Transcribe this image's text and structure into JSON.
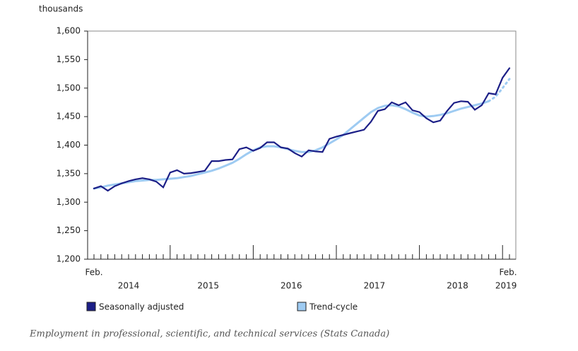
{
  "chart_data": {
    "type": "line",
    "y_axis_label": "thousands",
    "caption": "Employment in professional, scientific, and technical services (Stats Canada)",
    "categories": [
      null,
      null,
      null,
      null,
      null,
      null,
      null,
      null,
      null,
      null,
      null,
      null,
      null,
      null,
      null,
      null,
      null,
      null,
      null,
      null,
      null,
      null,
      null,
      null,
      null,
      null,
      null,
      null,
      null,
      null,
      null,
      null,
      null,
      null,
      null,
      null,
      null,
      null,
      null,
      null,
      null,
      null,
      null,
      null,
      null,
      null,
      null,
      null,
      null,
      null,
      null,
      null,
      null,
      null,
      null,
      null,
      null,
      null,
      null,
      null,
      null
    ],
    "first_month_label": "Feb.",
    "last_month_label": "Feb.",
    "year_labels": [
      "2014",
      "2015",
      "2016",
      "2017",
      "2018",
      "2019"
    ],
    "ylim": [
      1200,
      1600
    ],
    "yticks": [
      {
        "value": 1200,
        "label": "1,200"
      },
      {
        "value": 1250,
        "label": "1,250"
      },
      {
        "value": 1300,
        "label": "1,300"
      },
      {
        "value": 1350,
        "label": "1,350"
      },
      {
        "value": 1400,
        "label": "1,400"
      },
      {
        "value": 1450,
        "label": "1,450"
      },
      {
        "value": 1500,
        "label": "1,500"
      },
      {
        "value": 1550,
        "label": "1,550"
      },
      {
        "value": 1600,
        "label": "1,600"
      }
    ],
    "series": [
      {
        "name": "Seasonally adjusted",
        "color": "#1c1f87",
        "values": [
          1324,
          1328,
          1320,
          1328,
          1333,
          1337,
          1340,
          1342,
          1340,
          1336,
          1326,
          1352,
          1356,
          1350,
          1351,
          1353,
          1355,
          1372,
          1372,
          1374,
          1375,
          1393,
          1396,
          1390,
          1395,
          1405,
          1405,
          1396,
          1394,
          1386,
          1380,
          1391,
          1389,
          1388,
          1411,
          1415,
          1418,
          1421,
          1424,
          1427,
          1441,
          1460,
          1463,
          1475,
          1470,
          1475,
          1461,
          1458,
          1447,
          1440,
          1443,
          1460,
          1474,
          1477,
          1476,
          1462,
          1470,
          1491,
          1489,
          1518,
          1535
        ]
      },
      {
        "name": "Trend-cycle",
        "color": "#9ecbf2",
        "dotted_tail": 3,
        "values": [
          1324,
          1326,
          1329,
          1331,
          1333,
          1335,
          1337,
          1338,
          1339,
          1339,
          1340,
          1341,
          1342,
          1344,
          1346,
          1349,
          1352,
          1355,
          1359,
          1364,
          1369,
          1376,
          1384,
          1391,
          1396,
          1398,
          1398,
          1396,
          1393,
          1390,
          1388,
          1388,
          1391,
          1396,
          1403,
          1410,
          1418,
          1428,
          1438,
          1448,
          1458,
          1465,
          1469,
          1470,
          1468,
          1463,
          1457,
          1452,
          1450,
          1451,
          1453,
          1456,
          1460,
          1464,
          1467,
          1470,
          1473,
          1477,
          1485,
          1500,
          1516
        ]
      }
    ]
  }
}
